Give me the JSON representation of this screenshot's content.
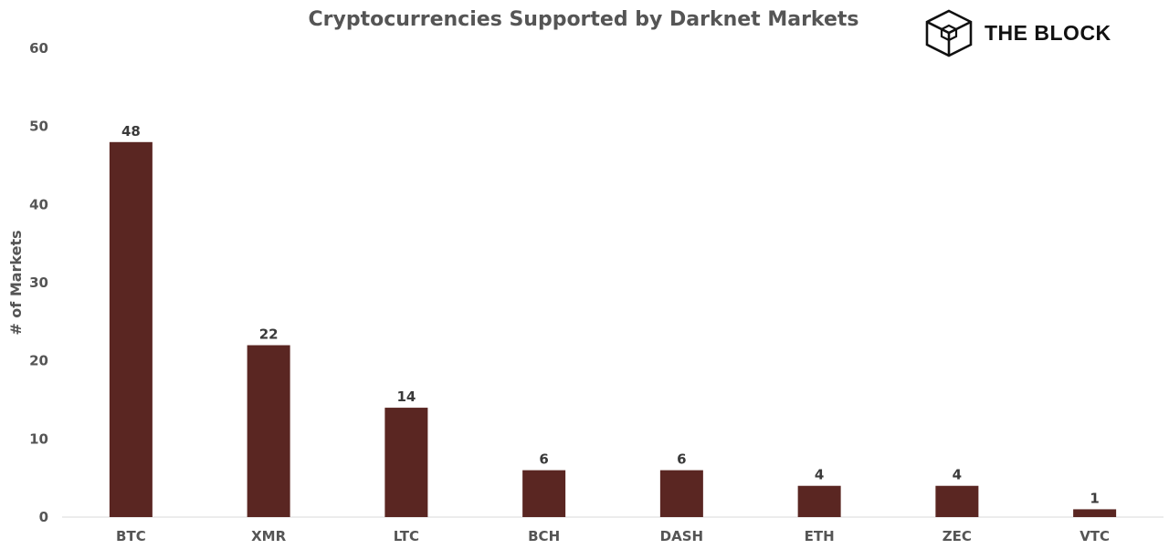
{
  "brand": {
    "logo_text": "THE BLOCK",
    "logo_icon": "cube-logo-icon"
  },
  "colors": {
    "bar": "#5a2622",
    "text": "#555555",
    "axis": "#d9d9d9"
  },
  "chart_data": {
    "type": "bar",
    "title": "Cryptocurrencies Supported by Darknet Markets",
    "xlabel": "",
    "ylabel": "# of Markets",
    "categories": [
      "BTC",
      "XMR",
      "LTC",
      "BCH",
      "DASH",
      "ETH",
      "ZEC",
      "VTC"
    ],
    "values": [
      48,
      22,
      14,
      6,
      6,
      4,
      4,
      1
    ],
    "ylim": [
      0,
      60
    ],
    "yticks": [
      0,
      10,
      20,
      30,
      40,
      50,
      60
    ],
    "grid": false,
    "data_labels": true
  }
}
